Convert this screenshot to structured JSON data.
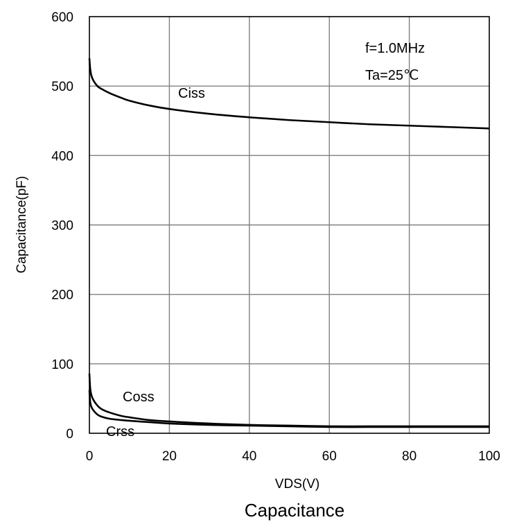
{
  "chart_data": {
    "type": "line",
    "title": "Capacitance",
    "xlabel": "VDS(V)",
    "ylabel": "Capacitance(pF)",
    "xlim": [
      0,
      100
    ],
    "ylim": [
      0,
      600
    ],
    "xticks": [
      0,
      20,
      40,
      60,
      80,
      100
    ],
    "yticks": [
      0,
      100,
      200,
      300,
      400,
      500,
      600
    ],
    "grid": true,
    "annotations": [
      "f=1.0MHz",
      "Ta=25℃"
    ],
    "series": [
      {
        "name": "Ciss",
        "x": [
          0,
          0.2,
          0.5,
          1,
          2,
          3,
          5,
          8,
          10,
          15,
          20,
          30,
          40,
          50,
          60,
          70,
          80,
          90,
          100
        ],
        "y": [
          540,
          525,
          515,
          508,
          500,
          496,
          490,
          483,
          479,
          472,
          467,
          460,
          455,
          451,
          448,
          445,
          443,
          441,
          439
        ]
      },
      {
        "name": "Coss",
        "x": [
          0,
          0.2,
          0.5,
          1,
          2,
          3,
          5,
          8,
          10,
          15,
          20,
          30,
          40,
          50,
          60,
          70,
          80,
          90,
          100
        ],
        "y": [
          86,
          65,
          55,
          48,
          40,
          35,
          30,
          25,
          23,
          19,
          17,
          14,
          12,
          11,
          10,
          10,
          10,
          10,
          10
        ]
      },
      {
        "name": "Crss",
        "x": [
          0,
          0.2,
          0.5,
          1,
          2,
          3,
          5,
          8,
          10,
          15,
          20,
          30,
          40,
          50,
          60,
          70,
          80,
          90,
          100
        ],
        "y": [
          62,
          45,
          38,
          33,
          27,
          24,
          21,
          19,
          18,
          16,
          14,
          12,
          11,
          10,
          9,
          9,
          9,
          9,
          9
        ]
      }
    ]
  }
}
